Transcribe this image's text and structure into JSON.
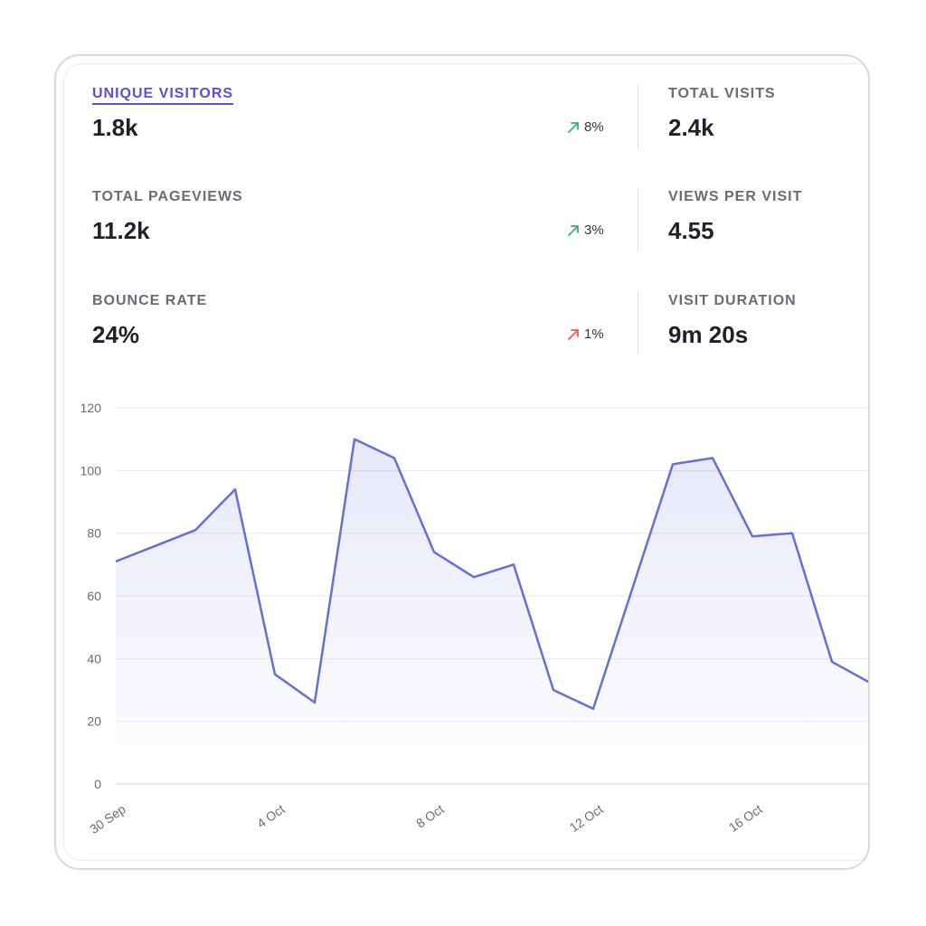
{
  "metrics": {
    "unique_visitors": {
      "label": "UNIQUE VISITORS",
      "value": "1.8k",
      "change": "8%",
      "trend": "up",
      "change_color": "#2fb37b"
    },
    "total_pageviews": {
      "label": "TOTAL PAGEVIEWS",
      "value": "11.2k",
      "change": "3%",
      "trend": "up",
      "change_color": "#2fb37b"
    },
    "bounce_rate": {
      "label": "BOUNCE RATE",
      "value": "24%",
      "change": "1%",
      "trend": "up",
      "change_color": "#ef5a5a"
    },
    "total_visits": {
      "label": "TOTAL VISITS",
      "value": "2.4k"
    },
    "views_per_visit": {
      "label": "VIEWS PER VISIT",
      "value": "4.55"
    },
    "visit_duration": {
      "label": "VISIT DURATION",
      "value": "9m 20s"
    }
  },
  "colors": {
    "accent": "#5a4ee0",
    "line": "#6470d4",
    "positive": "#2fb37b",
    "negative": "#ef5a5a"
  },
  "chart_data": {
    "type": "area",
    "x": [
      "30 Sep",
      "1 Oct",
      "2 Oct",
      "3 Oct",
      "4 Oct",
      "5 Oct",
      "6 Oct",
      "7 Oct",
      "8 Oct",
      "9 Oct",
      "10 Oct",
      "11 Oct",
      "12 Oct",
      "13 Oct",
      "14 Oct",
      "15 Oct",
      "16 Oct",
      "17 Oct",
      "18 Oct",
      "19 Oct"
    ],
    "x_tick_labels": [
      "30 Sep",
      "4 Oct",
      "8 Oct",
      "12 Oct",
      "16 Oct"
    ],
    "series": [
      {
        "values": [
          71,
          76,
          81,
          94,
          35,
          26,
          110,
          104,
          74,
          66,
          70,
          30,
          24,
          63,
          102,
          104,
          79,
          80,
          39,
          32
        ]
      }
    ],
    "ylim": [
      0,
      120
    ],
    "yticks": [
      0,
      20,
      40,
      60,
      80,
      100,
      120
    ],
    "grid": true,
    "xlabel": "",
    "ylabel": "",
    "title": ""
  }
}
